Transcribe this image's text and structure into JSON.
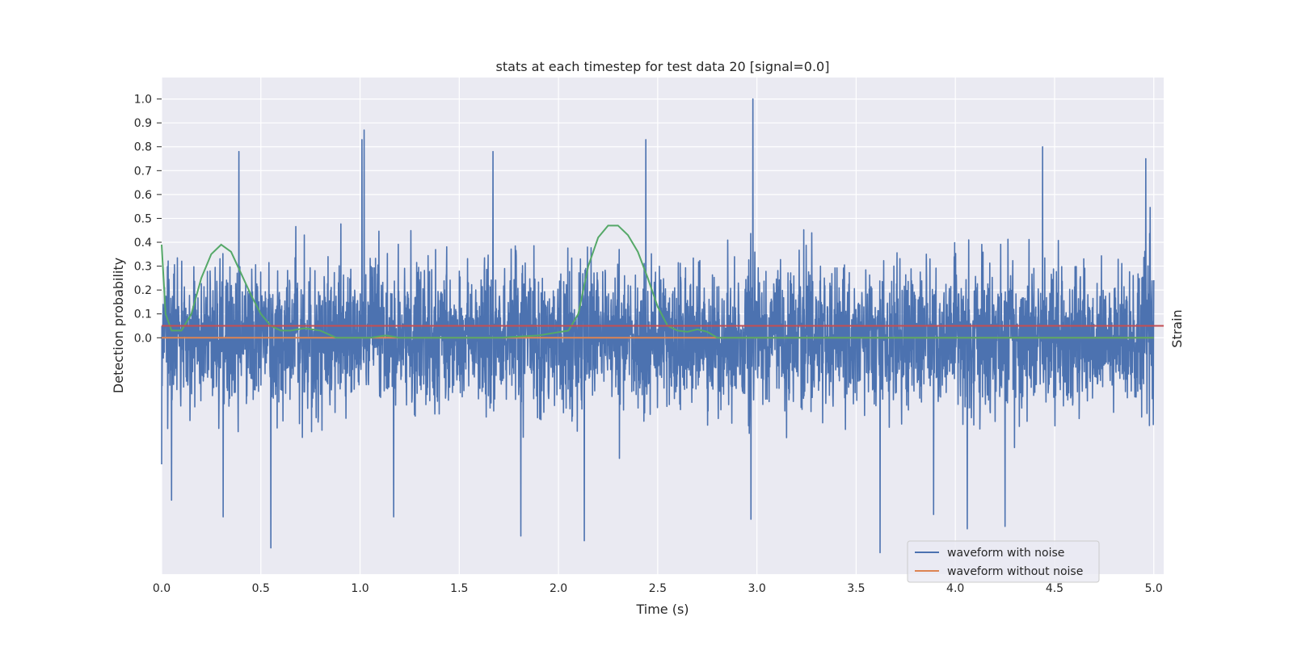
{
  "chart_data": {
    "type": "line",
    "title": "stats at each timestep for test data 20 [signal=0.0]",
    "xlabel": "Time (s)",
    "ylabel": "Detection probability",
    "y2label": "Strain",
    "xlim": [
      0.0,
      5.05
    ],
    "ylim": [
      -0.99,
      1.09
    ],
    "xticks": [
      "0.0",
      "0.5",
      "1.0",
      "1.5",
      "2.0",
      "2.5",
      "3.0",
      "3.5",
      "4.0",
      "4.5",
      "5.0"
    ],
    "xtick_values": [
      0.0,
      0.5,
      1.0,
      1.5,
      2.0,
      2.5,
      3.0,
      3.5,
      4.0,
      4.5,
      5.0
    ],
    "yticks": [
      "0.0",
      "0.1",
      "0.2",
      "0.3",
      "0.4",
      "0.5",
      "0.6",
      "0.7",
      "0.8",
      "0.9",
      "1.0"
    ],
    "ytick_values": [
      0.0,
      0.1,
      0.2,
      0.3,
      0.4,
      0.5,
      0.6,
      0.7,
      0.8,
      0.9,
      1.0
    ],
    "grid": true,
    "legend_position": "bottom-right",
    "colors": {
      "noisy": "#4c72b0",
      "clean": "#dd8452",
      "probability": "#55a868",
      "threshold": "#c44e52",
      "plot_bg": "#eaeaf2",
      "grid": "#ffffff"
    },
    "series": [
      {
        "name": "waveform with noise",
        "color": "#4c72b0",
        "noise_envelope": {
          "x_range": [
            0.0,
            5.0
          ],
          "y_range": [
            -0.88,
            1.0
          ]
        },
        "spikes": [
          {
            "x": 0.0,
            "y": -0.53
          },
          {
            "x": 0.03,
            "y": -0.38
          },
          {
            "x": 0.05,
            "y": 0.5
          },
          {
            "x": 0.05,
            "y": -0.68
          },
          {
            "x": 0.31,
            "y": -0.75
          },
          {
            "x": 0.39,
            "y": 0.78
          },
          {
            "x": 0.55,
            "y": -0.88
          },
          {
            "x": 1.01,
            "y": 0.83
          },
          {
            "x": 1.02,
            "y": 0.87
          },
          {
            "x": 1.17,
            "y": -0.75
          },
          {
            "x": 1.67,
            "y": 0.78
          },
          {
            "x": 1.81,
            "y": -0.83
          },
          {
            "x": 2.13,
            "y": -0.85
          },
          {
            "x": 2.44,
            "y": 0.83
          },
          {
            "x": 2.97,
            "y": -0.76
          },
          {
            "x": 2.98,
            "y": 1.0
          },
          {
            "x": 3.62,
            "y": -0.9
          },
          {
            "x": 3.89,
            "y": -0.74
          },
          {
            "x": 4.06,
            "y": -0.8
          },
          {
            "x": 4.25,
            "y": -0.79
          },
          {
            "x": 4.44,
            "y": 0.8
          },
          {
            "x": 4.96,
            "y": 0.75
          }
        ]
      },
      {
        "name": "waveform without noise",
        "color": "#dd8452",
        "x": [
          0.0,
          5.0
        ],
        "y": [
          0.0,
          0.0
        ]
      },
      {
        "color": "#55a868",
        "x": [
          0.0,
          0.02,
          0.05,
          0.1,
          0.15,
          0.2,
          0.25,
          0.3,
          0.35,
          0.4,
          0.45,
          0.5,
          0.55,
          0.6,
          0.65,
          0.72,
          0.8,
          0.88,
          0.95,
          1.05,
          1.13,
          1.2,
          1.3,
          1.5,
          1.7,
          1.9,
          2.05,
          2.1,
          2.15,
          2.2,
          2.25,
          2.3,
          2.35,
          2.4,
          2.45,
          2.5,
          2.55,
          2.6,
          2.65,
          2.7,
          2.75,
          2.8,
          2.9,
          3.2,
          4.0,
          5.0
        ],
        "y": [
          0.39,
          0.1,
          0.03,
          0.03,
          0.1,
          0.25,
          0.35,
          0.39,
          0.36,
          0.27,
          0.18,
          0.1,
          0.05,
          0.03,
          0.03,
          0.04,
          0.03,
          0.0,
          0.0,
          0.0,
          0.01,
          0.0,
          0.0,
          0.0,
          0.0,
          0.01,
          0.03,
          0.1,
          0.3,
          0.42,
          0.47,
          0.47,
          0.43,
          0.36,
          0.25,
          0.13,
          0.05,
          0.03,
          0.025,
          0.035,
          0.025,
          0.0,
          0.0,
          0.0,
          0.0,
          0.0
        ]
      },
      {
        "color": "#c44e52",
        "x": [
          0.0,
          5.05
        ],
        "y": [
          0.05,
          0.05
        ]
      }
    ]
  }
}
